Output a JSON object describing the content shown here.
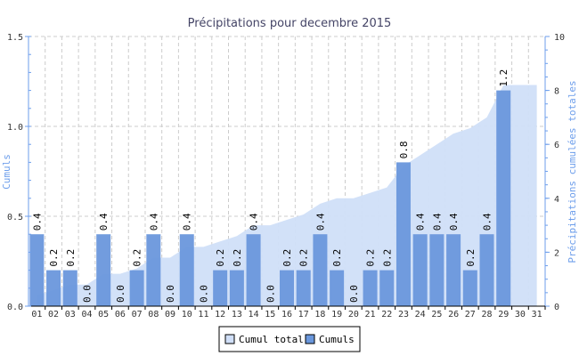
{
  "chart_data": {
    "type": "bar",
    "title": "Précipitations pour decembre 2015",
    "xlabel": "",
    "ylabel": "Cumuls",
    "ylabel_right": "Précipitations cumulées totales",
    "ylim": [
      0,
      1.5
    ],
    "ylim_right": [
      0,
      10
    ],
    "yticks": [
      "0.0",
      "0.5",
      "1.0",
      "1.5"
    ],
    "yticks_right": [
      "0",
      "2",
      "4",
      "6",
      "8",
      "10"
    ],
    "grid": true,
    "legend_position": "bottom",
    "categories": [
      "01",
      "02",
      "03",
      "04",
      "05",
      "06",
      "07",
      "08",
      "09",
      "10",
      "11",
      "12",
      "13",
      "14",
      "15",
      "16",
      "17",
      "18",
      "19",
      "20",
      "21",
      "22",
      "23",
      "24",
      "25",
      "26",
      "27",
      "28",
      "29",
      "30",
      "31"
    ],
    "series": [
      {
        "name": "Cumul total",
        "type": "area",
        "axis": "right",
        "color": "#d0dff8",
        "values": [
          0.4,
          0.6,
          0.8,
          0.8,
          1.2,
          1.2,
          1.4,
          1.8,
          1.8,
          2.2,
          2.2,
          2.4,
          2.6,
          3.0,
          3.0,
          3.2,
          3.4,
          3.8,
          4.0,
          4.0,
          4.2,
          4.4,
          5.2,
          5.6,
          6.0,
          6.4,
          6.6,
          7.0,
          8.2,
          8.2,
          8.2
        ]
      },
      {
        "name": "Cumuls",
        "type": "bar",
        "axis": "left",
        "color": "#6a97dc",
        "values": [
          0.4,
          0.2,
          0.2,
          0.0,
          0.4,
          0.0,
          0.2,
          0.4,
          0.0,
          0.4,
          0.0,
          0.2,
          0.2,
          0.4,
          0.0,
          0.2,
          0.2,
          0.4,
          0.2,
          0.0,
          0.2,
          0.2,
          0.8,
          0.4,
          0.4,
          0.4,
          0.2,
          0.4,
          1.2,
          null,
          null
        ]
      }
    ]
  }
}
